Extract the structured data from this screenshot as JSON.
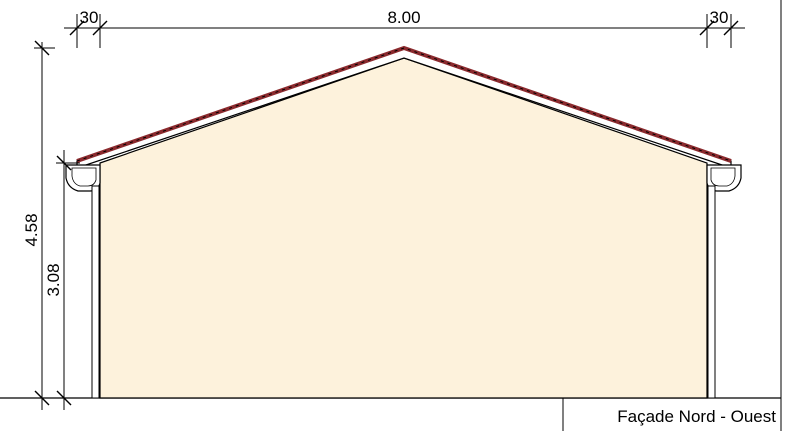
{
  "drawing": {
    "caption": "Façade Nord - Ouest",
    "dimensions": {
      "overhang_left": "30",
      "width": "8.00",
      "overhang_right": "30",
      "total_height": "4.58",
      "eave_height": "3.08"
    },
    "colors": {
      "wall_fill": "#fdf2dc",
      "roof_tiles": "#8b2a2e",
      "line": "#000000"
    }
  }
}
